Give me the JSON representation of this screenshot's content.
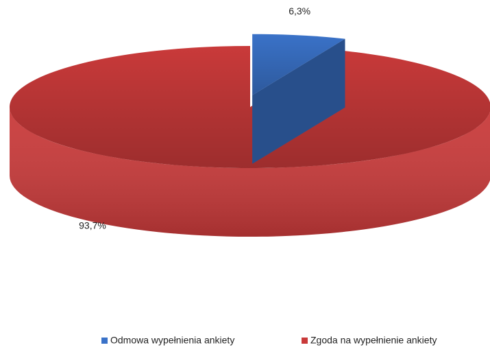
{
  "chart_data": {
    "type": "pie3d",
    "categories": [
      "Odmowa wypełnienia ankiety",
      "Zgoda na wypełnienie ankiety"
    ],
    "values": [
      6.3,
      93.7
    ],
    "value_labels": [
      "6,3%",
      "93,7%"
    ],
    "colors": [
      "#3a72c8",
      "#c93a3a"
    ],
    "legend": "bottom"
  }
}
